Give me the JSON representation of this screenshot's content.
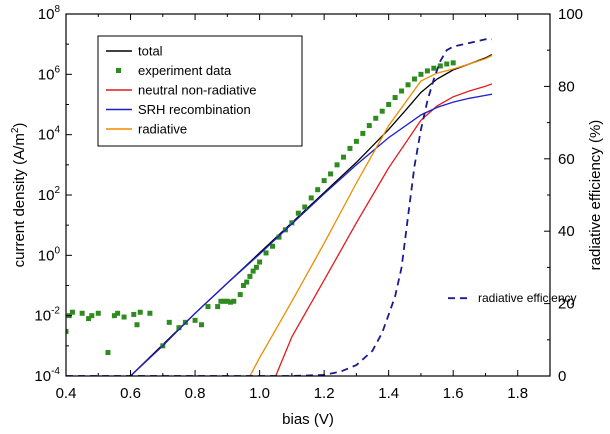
{
  "chart_data": {
    "type": "line",
    "xlabel": "bias (V)",
    "ylabel": "current density (A/m",
    "ylabel_sup": "2",
    "ylabel_tail": ")",
    "y2label": "radiative efficiency (%)",
    "xlim": [
      0.4,
      1.9
    ],
    "ylim": [
      0.0001,
      100000000.0
    ],
    "y_scale": "log",
    "y2lim": [
      0,
      100
    ],
    "x_ticks": [
      "0.4",
      "0.6",
      "0.8",
      "1.0",
      "1.2",
      "1.4",
      "1.6",
      "1.8"
    ],
    "y_ticks": [
      {
        "base": "10",
        "exp": "-4"
      },
      {
        "base": "10",
        "exp": "-2"
      },
      {
        "base": "10",
        "exp": "0"
      },
      {
        "base": "10",
        "exp": "2"
      },
      {
        "base": "10",
        "exp": "4"
      },
      {
        "base": "10",
        "exp": "6"
      },
      {
        "base": "10",
        "exp": "8"
      }
    ],
    "y2_ticks": [
      "0",
      "20",
      "40",
      "60",
      "80",
      "100"
    ],
    "grid": false,
    "legend_position": "top-left",
    "series": [
      {
        "name": "total",
        "type": "line",
        "axis": "left",
        "color": "#000000",
        "x": [
          0.6,
          0.8,
          1.0,
          1.2,
          1.3,
          1.4,
          1.45,
          1.5,
          1.55,
          1.6,
          1.65,
          1.7,
          1.72
        ],
        "y": [
          0.0001,
          0.012,
          1.2,
          120,
          1200,
          15000,
          60000,
          250000,
          700000,
          1400000,
          2200000,
          3500000,
          4500000
        ]
      },
      {
        "name": "experiment data",
        "type": "scatter",
        "axis": "left",
        "color": "#2e8b1e",
        "x": [
          0.4,
          0.41,
          0.42,
          0.45,
          0.47,
          0.48,
          0.5,
          0.53,
          0.55,
          0.56,
          0.58,
          0.61,
          0.62,
          0.63,
          0.66,
          0.7,
          0.72,
          0.75,
          0.77,
          0.8,
          0.82,
          0.84,
          0.87,
          0.88,
          0.89,
          0.9,
          0.91,
          0.92,
          0.94,
          0.95,
          0.96,
          0.97,
          0.98,
          0.99,
          1.0,
          1.02,
          1.04,
          1.06,
          1.08,
          1.1,
          1.12,
          1.14,
          1.16,
          1.18,
          1.2,
          1.22,
          1.24,
          1.26,
          1.28,
          1.3,
          1.32,
          1.34,
          1.36,
          1.38,
          1.4,
          1.42,
          1.44,
          1.46,
          1.48,
          1.5,
          1.52,
          1.54,
          1.56,
          1.58,
          1.6
        ],
        "y": [
          0.003,
          0.01,
          0.013,
          0.012,
          0.008,
          0.01,
          0.012,
          0.0006,
          0.01,
          0.012,
          0.009,
          0.011,
          0.005,
          0.013,
          0.012,
          0.001,
          0.006,
          0.004,
          0.006,
          0.007,
          0.005,
          0.02,
          0.02,
          0.03,
          0.03,
          0.03,
          0.028,
          0.03,
          0.05,
          0.1,
          0.13,
          0.2,
          0.3,
          0.4,
          0.6,
          1.2,
          2,
          4,
          7,
          12,
          25,
          40,
          80,
          150,
          300,
          500,
          1000,
          1800,
          3500,
          6000,
          11000,
          20000,
          35000,
          60000,
          100000,
          170000,
          280000,
          450000,
          700000,
          1000000,
          1300000,
          1600000,
          1900000,
          2200000,
          2400000
        ]
      },
      {
        "name": "neutral non-radiative",
        "type": "line",
        "axis": "left",
        "color": "#e41a1c",
        "x": [
          1.05,
          1.1,
          1.2,
          1.3,
          1.4,
          1.5,
          1.55,
          1.6,
          1.65,
          1.7,
          1.72
        ],
        "y": [
          0.0001,
          0.002,
          0.15,
          12,
          800,
          30000,
          90000,
          180000,
          280000,
          400000,
          480000
        ]
      },
      {
        "name": "SRH recombination",
        "type": "line",
        "axis": "left",
        "color": "#1f1fcc",
        "x": [
          0.6,
          0.7,
          0.8,
          0.9,
          1.0,
          1.1,
          1.2,
          1.3,
          1.4,
          1.5,
          1.55,
          1.6,
          1.65,
          1.7,
          1.72
        ],
        "y": [
          0.0001,
          0.001,
          0.012,
          0.12,
          1.1,
          11,
          110,
          1000,
          8000,
          45000,
          80000,
          120000,
          160000,
          200000,
          220000
        ]
      },
      {
        "name": "radiative",
        "type": "line",
        "axis": "left",
        "color": "#f08c00",
        "x": [
          0.97,
          1.0,
          1.1,
          1.2,
          1.3,
          1.4,
          1.5,
          1.55,
          1.6,
          1.65,
          1.7,
          1.72
        ],
        "y": [
          0.0001,
          0.0004,
          0.03,
          2.5,
          250,
          20000,
          600000,
          1100000,
          1500000,
          2200000,
          3300000,
          4200000
        ]
      },
      {
        "name": "radiative efficiency",
        "type": "line",
        "axis": "right",
        "color": "#1a1a8c",
        "dash": true,
        "x": [
          0.4,
          0.9,
          1.1,
          1.2,
          1.25,
          1.3,
          1.35,
          1.38,
          1.4,
          1.42,
          1.44,
          1.46,
          1.48,
          1.5,
          1.52,
          1.54,
          1.56,
          1.58,
          1.6,
          1.65,
          1.7,
          1.72
        ],
        "y": [
          0,
          0,
          0,
          0.3,
          1.2,
          3,
          7,
          12,
          17,
          22,
          30,
          44,
          58,
          68,
          76,
          82,
          87,
          90,
          91,
          92,
          93,
          93
        ]
      }
    ],
    "legend": [
      {
        "label": "total",
        "kind": "line",
        "color": "#000000"
      },
      {
        "label": "experiment data",
        "kind": "marker",
        "color": "#2e8b1e"
      },
      {
        "label": "neutral non-radiative",
        "kind": "line",
        "color": "#e41a1c"
      },
      {
        "label": "SRH recombination",
        "kind": "line",
        "color": "#1f1fcc"
      },
      {
        "label": "radiative",
        "kind": "line",
        "color": "#f08c00"
      }
    ],
    "annotation": {
      "label": "radiative efficiency",
      "color": "#1a1a8c"
    }
  }
}
